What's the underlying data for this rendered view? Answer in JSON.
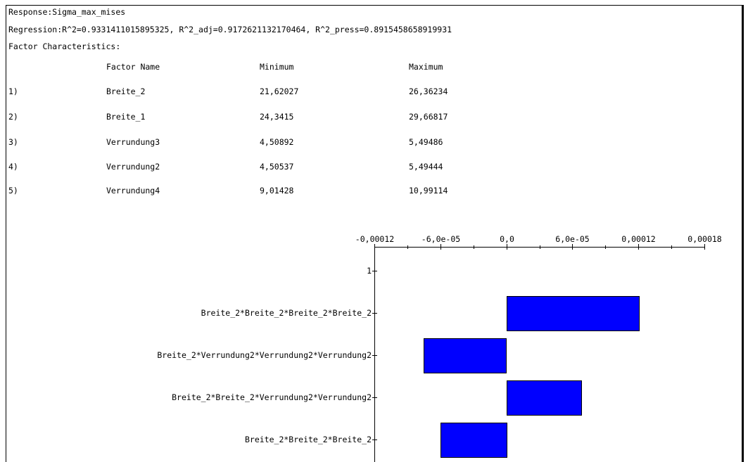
{
  "header": {
    "response": "Response:Sigma_max_mises",
    "regression": "Regression:R^2=0.9331411015895325, R^2_adj=0.9172621132170464, R^2_press=0.8915458658919931",
    "factor_title": "Factor Characteristics:"
  },
  "factor_table": {
    "columns": [
      "Factor Name",
      "Minimum",
      "Maximum"
    ],
    "rows": [
      {
        "index": "1)",
        "name": "Breite_2",
        "min": "21,62027",
        "max": "26,36234"
      },
      {
        "index": "2)",
        "name": "Breite_1",
        "min": "24,3415",
        "max": "29,66817"
      },
      {
        "index": "3)",
        "name": "Verrundung3",
        "min": "4,50892",
        "max": "5,49486"
      },
      {
        "index": "4)",
        "name": "Verrundung2",
        "min": "4,50537",
        "max": "5,49444"
      },
      {
        "index": "5)",
        "name": "Verrundung4",
        "min": "9,01428",
        "max": "10,99114"
      }
    ]
  },
  "colors": {
    "bar_fill": "#0000ff",
    "bar_stroke": "#000000",
    "border": "#000000"
  },
  "chart_data": {
    "type": "bar",
    "orientation": "horizontal",
    "x_ticks": [
      "-0,00012",
      "-6,0e-05",
      "0,0",
      "6,0e-05",
      "0,00012",
      "0,00018"
    ],
    "x_tick_values": [
      -0.00012,
      -6e-05,
      0.0,
      6e-05,
      0.00012,
      0.00018
    ],
    "xlim": [
      -0.00012,
      0.00018
    ],
    "x_axis_position": "top",
    "categories": [
      "1",
      "Breite_2*Breite_2*Breite_2*Breite_2",
      "Breite_2*Verrundung2*Verrundung2*Verrundung2",
      "Breite_2*Breite_2*Verrundung2*Verrundung2",
      "Breite_2*Breite_2*Breite_2"
    ],
    "values": [
      null,
      0.00012,
      -7.5e-05,
      6.8e-05,
      -6e-05
    ],
    "grid": false
  }
}
